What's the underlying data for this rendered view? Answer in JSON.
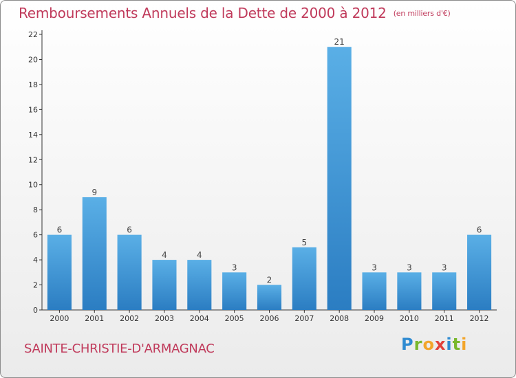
{
  "header": {
    "title": "Remboursements Annuels de la Dette de 2000 à 2012",
    "subtitle": "(en milliers d'€)"
  },
  "footer": {
    "commune": "SAINTE-CHRISTIE-D'ARMAGNAC",
    "logo_text": "Proxiti"
  },
  "colors": {
    "title": "#c03a5b",
    "bar_top": "#5aafe6",
    "bar_bottom": "#2b7dc2"
  },
  "chart_data": {
    "type": "bar",
    "title": "Remboursements Annuels de la Dette de 2000 à 2012",
    "subtitle": "(en milliers d'€)",
    "categories": [
      "2000",
      "2001",
      "2002",
      "2003",
      "2004",
      "2005",
      "2006",
      "2007",
      "2008",
      "2009",
      "2010",
      "2011",
      "2012"
    ],
    "values": [
      6,
      9,
      6,
      4,
      4,
      3,
      2,
      5,
      21,
      3,
      3,
      3,
      6
    ],
    "data_labels": [
      "6",
      "9",
      "6",
      "4",
      "4",
      "3",
      "2",
      "5",
      "21",
      "3",
      "3",
      "3",
      "6"
    ],
    "ylim": [
      0,
      22
    ],
    "yticks": [
      0,
      2,
      4,
      6,
      8,
      10,
      12,
      14,
      16,
      18,
      20,
      22
    ],
    "xlabel": "",
    "ylabel": "",
    "grid": false,
    "legend": "none"
  }
}
